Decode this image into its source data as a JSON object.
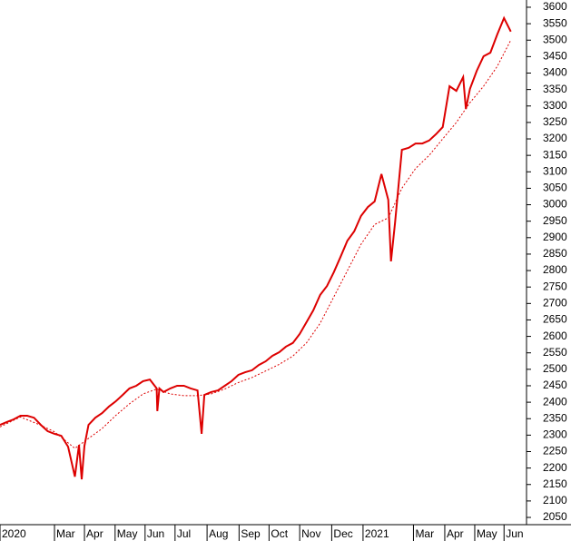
{
  "chart_data": {
    "type": "line",
    "ylim": [
      2028,
      3622
    ],
    "yticks": [
      2050,
      2100,
      2150,
      2200,
      2250,
      2300,
      2350,
      2400,
      2450,
      2500,
      2550,
      2600,
      2650,
      2700,
      2750,
      2800,
      2850,
      2900,
      2950,
      3000,
      3050,
      3100,
      3150,
      3200,
      3250,
      3300,
      3350,
      3400,
      3450,
      3500,
      3550,
      3600
    ],
    "xlim": [
      0,
      77.3
    ],
    "xticks": [
      {
        "value": 0,
        "label": "2020"
      },
      {
        "value": 8,
        "label": "Mar"
      },
      {
        "value": 12.4,
        "label": "Apr"
      },
      {
        "value": 16.9,
        "label": "May"
      },
      {
        "value": 21.3,
        "label": "Jun"
      },
      {
        "value": 25.7,
        "label": "Jul"
      },
      {
        "value": 30.4,
        "label": "Aug"
      },
      {
        "value": 35.1,
        "label": "Sep"
      },
      {
        "value": 39.5,
        "label": "Oct"
      },
      {
        "value": 44,
        "label": "Nov"
      },
      {
        "value": 48.7,
        "label": "Dec"
      },
      {
        "value": 53.3,
        "label": "2021"
      },
      {
        "value": 60.7,
        "label": "Mar"
      },
      {
        "value": 65.3,
        "label": "Apr"
      },
      {
        "value": 69.7,
        "label": "May"
      },
      {
        "value": 74,
        "label": "Jun"
      }
    ],
    "series": [
      {
        "color": "#dd0000",
        "style": "solid",
        "x": [
          0,
          1,
          2,
          3,
          4,
          5,
          6,
          7,
          8,
          9,
          10,
          11,
          11.6,
          12,
          12.4,
          13,
          14,
          15,
          16,
          17,
          18,
          19,
          20,
          21,
          22,
          23,
          23.1,
          23.4,
          24,
          25,
          26,
          27,
          28,
          29,
          29.6,
          30,
          31,
          32,
          33,
          34,
          35,
          36,
          37,
          38,
          39,
          40,
          41,
          42,
          43,
          44,
          45,
          46,
          47,
          48,
          49,
          50,
          51,
          52,
          53,
          54,
          55,
          56,
          57,
          57.4,
          58,
          59,
          60,
          61,
          62,
          63,
          64,
          65,
          66,
          67,
          68,
          68.4,
          69,
          70,
          71,
          72,
          73,
          74,
          75
        ],
        "values": [
          2331,
          2340,
          2348,
          2359,
          2359,
          2353,
          2331,
          2312,
          2304,
          2298,
          2265,
          2174,
          2270,
          2166,
          2267,
          2331,
          2353,
          2367,
          2387,
          2403,
          2422,
          2442,
          2450,
          2464,
          2469,
          2442,
          2373,
          2442,
          2431,
          2442,
          2450,
          2450,
          2442,
          2436,
          2304,
          2422,
          2431,
          2436,
          2450,
          2464,
          2483,
          2491,
          2497,
          2513,
          2524,
          2541,
          2552,
          2569,
          2580,
          2607,
          2643,
          2679,
          2726,
          2753,
          2795,
          2842,
          2891,
          2919,
          2966,
          2993,
          3010,
          3093,
          3015,
          2828,
          2946,
          3167,
          3173,
          3186,
          3186,
          3195,
          3214,
          3236,
          3360,
          3346,
          3388,
          3291,
          3352,
          3407,
          3451,
          3462,
          3517,
          3567,
          3526
        ]
      },
      {
        "color": "#dd0000",
        "style": "dotted",
        "x": [
          0,
          3,
          6,
          8,
          11,
          13,
          15,
          17,
          19,
          21,
          23,
          25,
          27,
          29,
          31,
          33,
          35,
          37,
          39,
          41,
          43,
          45,
          47,
          49,
          51,
          53,
          55,
          57,
          59,
          61,
          63,
          65,
          67,
          69,
          71,
          73,
          75
        ],
        "values": [
          2325,
          2355,
          2330,
          2310,
          2260,
          2290,
          2320,
          2360,
          2395,
          2425,
          2440,
          2425,
          2420,
          2420,
          2425,
          2440,
          2460,
          2475,
          2495,
          2515,
          2540,
          2580,
          2640,
          2720,
          2800,
          2880,
          2940,
          2960,
          3050,
          3110,
          3150,
          3200,
          3250,
          3310,
          3360,
          3420,
          3500
        ]
      }
    ]
  }
}
